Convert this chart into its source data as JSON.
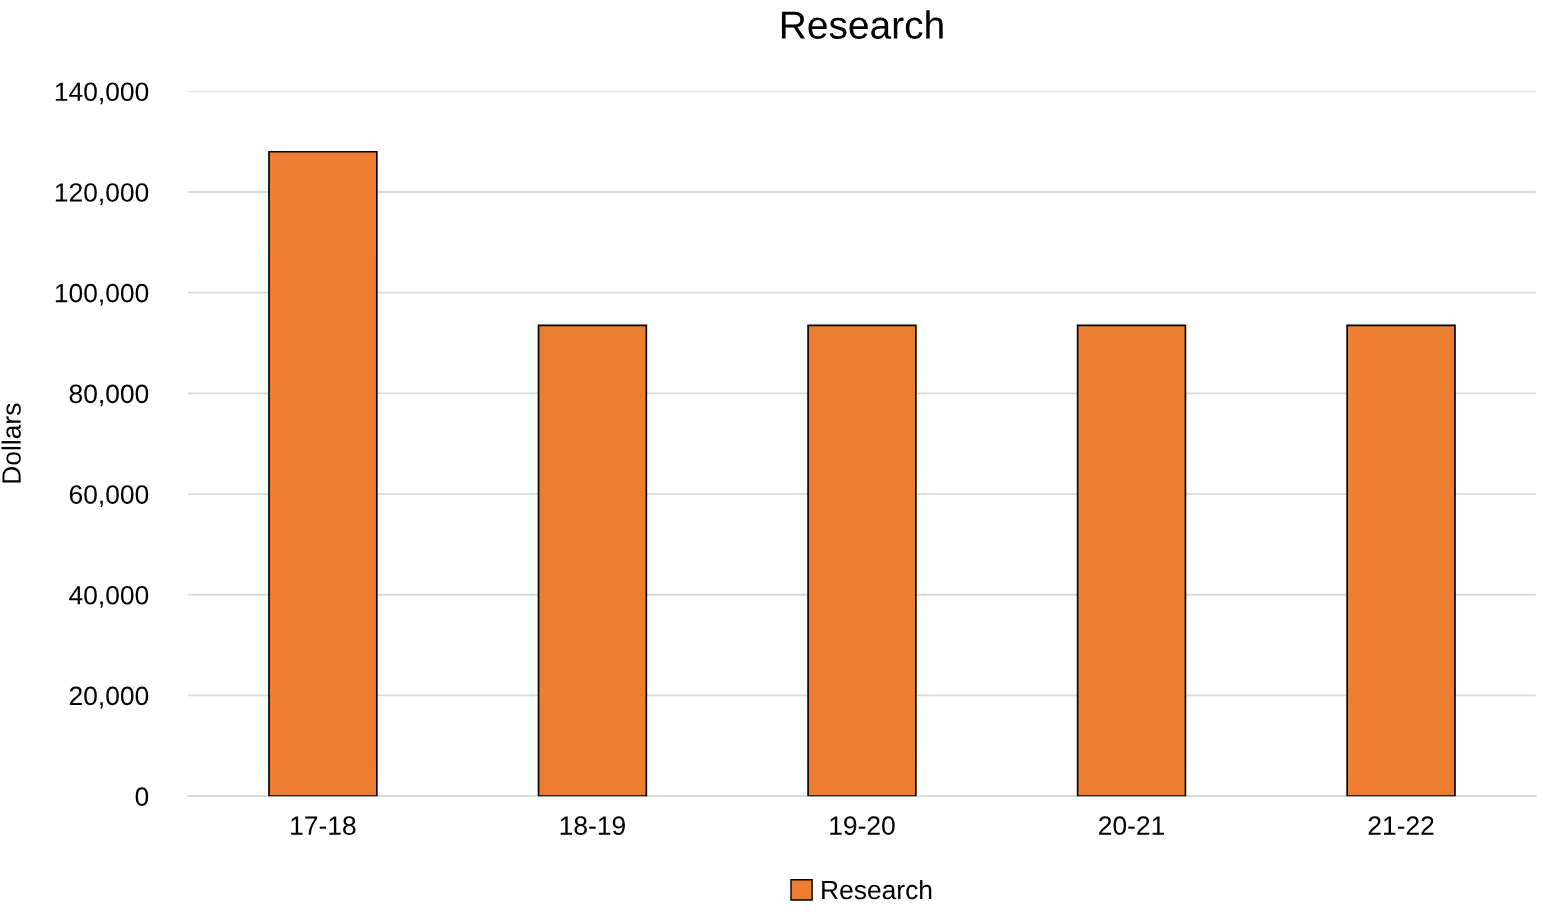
{
  "chart_data": {
    "type": "bar",
    "title": "Research",
    "ylabel": "Dollars",
    "categories": [
      "17-18",
      "18-19",
      "19-20",
      "20-21",
      "21-22"
    ],
    "series": [
      {
        "name": "Research",
        "color": "#ed7d31",
        "values": [
          128000,
          93500,
          93500,
          93500,
          93500
        ]
      }
    ],
    "ylim": [
      0,
      140000
    ],
    "yticks": [
      {
        "value": 0,
        "label": "0"
      },
      {
        "value": 20000,
        "label": "20,000"
      },
      {
        "value": 40000,
        "label": "40,000"
      },
      {
        "value": 60000,
        "label": "60,000"
      },
      {
        "value": 80000,
        "label": "80,000"
      },
      {
        "value": 100000,
        "label": "100,000"
      },
      {
        "value": 120000,
        "label": "120,000"
      },
      {
        "value": 140000,
        "label": "140,000"
      }
    ],
    "grid": "y",
    "legend": "bottom"
  }
}
